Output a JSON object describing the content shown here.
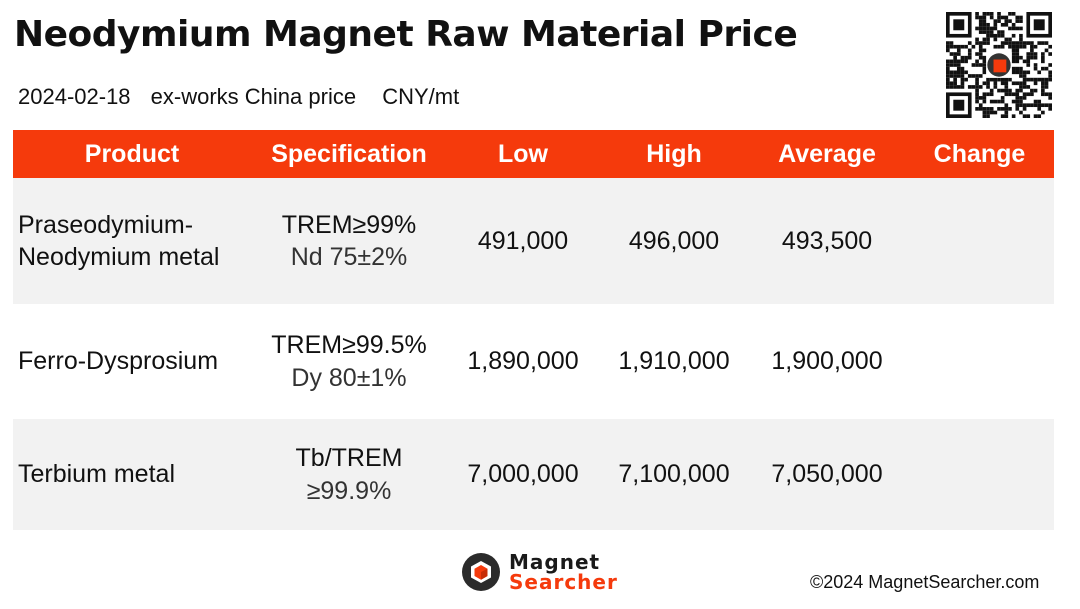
{
  "title": "Neodymium Magnet Raw Material Price",
  "subtitle": {
    "date": "2024-02-18",
    "basis": "ex-works China price",
    "unit": "CNY/mt"
  },
  "table": {
    "headers": {
      "product": "Product",
      "specification": "Specification",
      "low": "Low",
      "high": "High",
      "average": "Average",
      "change": "Change"
    },
    "rows": [
      {
        "product_line1": "Praseodymium-",
        "product_line2": "Neodymium metal",
        "spec_line1": "TREM≥99%",
        "spec_line2": "Nd 75±2%",
        "low": "491,000",
        "high": "496,000",
        "average": "493,500",
        "change": ""
      },
      {
        "product_line1": "Ferro-Dysprosium",
        "product_line2": "",
        "spec_line1": "TREM≥99.5%",
        "spec_line2": "Dy 80±1%",
        "low": "1,890,000",
        "high": "1,910,000",
        "average": "1,900,000",
        "change": ""
      },
      {
        "product_line1": "Terbium metal",
        "product_line2": "",
        "spec_line1": "Tb/TREM",
        "spec_line2": "≥99.9%",
        "low": "7,000,000",
        "high": "7,100,000",
        "average": "7,050,000",
        "change": ""
      }
    ]
  },
  "colors": {
    "accent": "#f53a0c",
    "row_shade": "#f2f2f2"
  },
  "logo": {
    "word1": "Magnet",
    "word2": "Searcher",
    "icon": "magnet-searcher-logo-icon"
  },
  "qr_icon": "qr-code-icon",
  "copyright": "©2024 MagnetSearcher.com"
}
